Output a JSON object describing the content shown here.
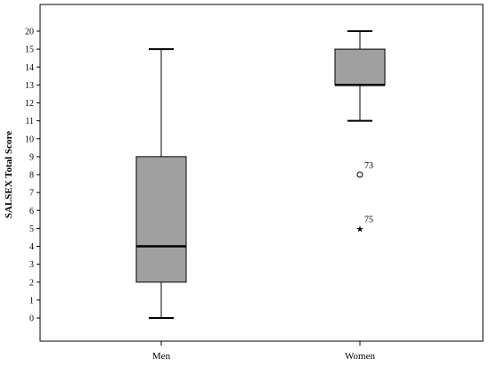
{
  "chart_data": {
    "type": "box",
    "ylabel": "SALSEX Total Score",
    "xlabel": "",
    "ytick_labels": [
      "0",
      "1",
      "2",
      "3",
      "4",
      "5",
      "6",
      "7",
      "8",
      "9",
      "10",
      "11",
      "12",
      "13",
      "14",
      "15",
      "20"
    ],
    "categories": [
      "Men",
      "Women"
    ],
    "boxes": [
      {
        "category": "Men",
        "whisker_low": 0,
        "q1": 2,
        "median": 4,
        "q3": 9,
        "whisker_high": 15
      },
      {
        "category": "Women",
        "whisker_low": 11,
        "q1": 13,
        "median": 13,
        "q3": 15,
        "whisker_high": 20
      }
    ],
    "outliers": [
      {
        "category": "Women",
        "value": 8,
        "marker": "circle",
        "label": "73"
      },
      {
        "category": "Women",
        "value": 5,
        "marker": "star",
        "label": "75"
      }
    ],
    "box_fill": "#a0a0a0",
    "stroke": "#000000",
    "grid": false
  }
}
